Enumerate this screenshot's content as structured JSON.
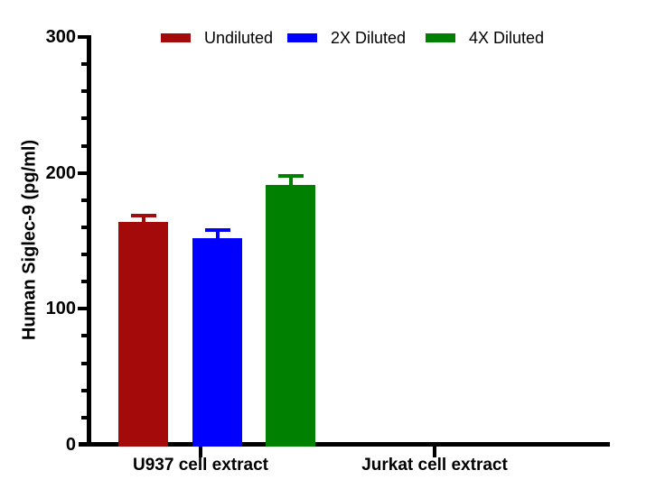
{
  "figure": {
    "background_color": "#FFFFFF",
    "axis_color": "#000000"
  },
  "chart_data": {
    "type": "bar",
    "title": "",
    "xlabel": "",
    "ylabel": "Human Siglec-9 (pg/ml)",
    "ylim": [
      0,
      300
    ],
    "yticks": [
      0,
      100,
      200,
      300
    ],
    "y_minor_step": 20,
    "grid": false,
    "legend_position": "top",
    "error_bars": "upper caps, series-colored",
    "categories": [
      "U937 cell extract",
      "Jurkat cell extract"
    ],
    "series": [
      {
        "name": "Undiluted",
        "color": "#A50A0A",
        "values": [
          164,
          0
        ],
        "errors": [
          6,
          0
        ]
      },
      {
        "name": "2X Diluted",
        "color": "#0000FF",
        "values": [
          152,
          0
        ],
        "errors": [
          7,
          0
        ]
      },
      {
        "name": "4X Diluted",
        "color": "#008000",
        "values": [
          191,
          0
        ],
        "errors": [
          8,
          0
        ]
      }
    ]
  }
}
